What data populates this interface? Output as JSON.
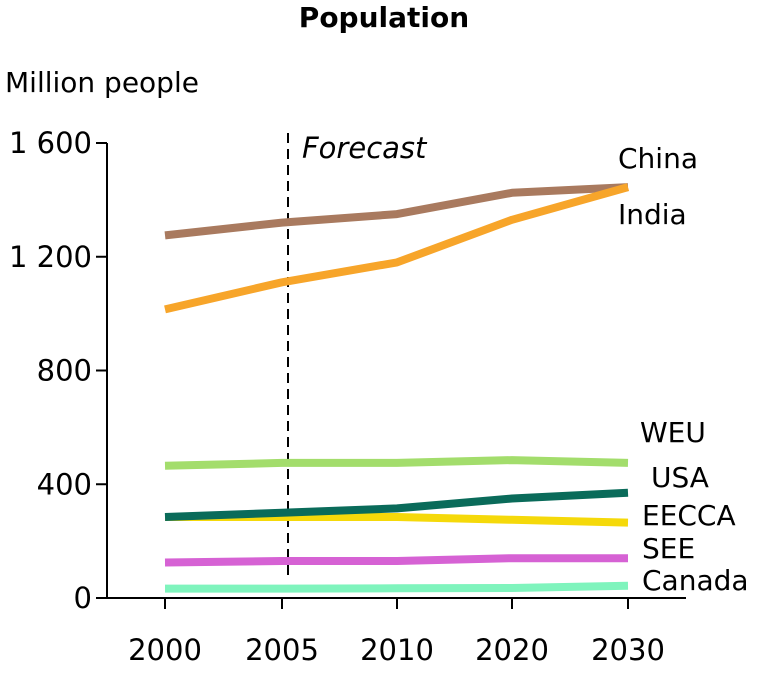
{
  "chart_data": {
    "type": "line",
    "title": "Population",
    "ylabel": "Million people",
    "xlabel": "",
    "categories": [
      "2000",
      "2005",
      "2010",
      "2020",
      "2030"
    ],
    "ylim": [
      0,
      1600
    ],
    "yticks": [
      0,
      400,
      800,
      1200,
      1600
    ],
    "ytick_labels": [
      "0",
      "400",
      "800",
      "1 200",
      "1 600"
    ],
    "grid": false,
    "legend": "none",
    "annotation": {
      "text": "Forecast",
      "at_category": "2005"
    },
    "series": [
      {
        "name": "China",
        "color": "#a97a5f",
        "values": [
          1275,
          1320,
          1350,
          1425,
          1445
        ]
      },
      {
        "name": "India",
        "color": "#f7a52a",
        "values": [
          1015,
          1110,
          1180,
          1330,
          1445
        ]
      },
      {
        "name": "WEU",
        "color": "#a3dd6c",
        "values": [
          465,
          475,
          475,
          485,
          475
        ]
      },
      {
        "name": "USA",
        "color": "#0a6b5a",
        "values": [
          285,
          300,
          315,
          350,
          370
        ]
      },
      {
        "name": "EECCA",
        "color": "#f5d90a",
        "values": [
          285,
          285,
          285,
          275,
          265
        ]
      },
      {
        "name": "SEE",
        "color": "#d662d4",
        "values": [
          125,
          130,
          130,
          140,
          140
        ]
      },
      {
        "name": "Canada",
        "color": "#7ff4bd",
        "values": [
          33,
          33,
          34,
          35,
          43
        ]
      }
    ]
  }
}
